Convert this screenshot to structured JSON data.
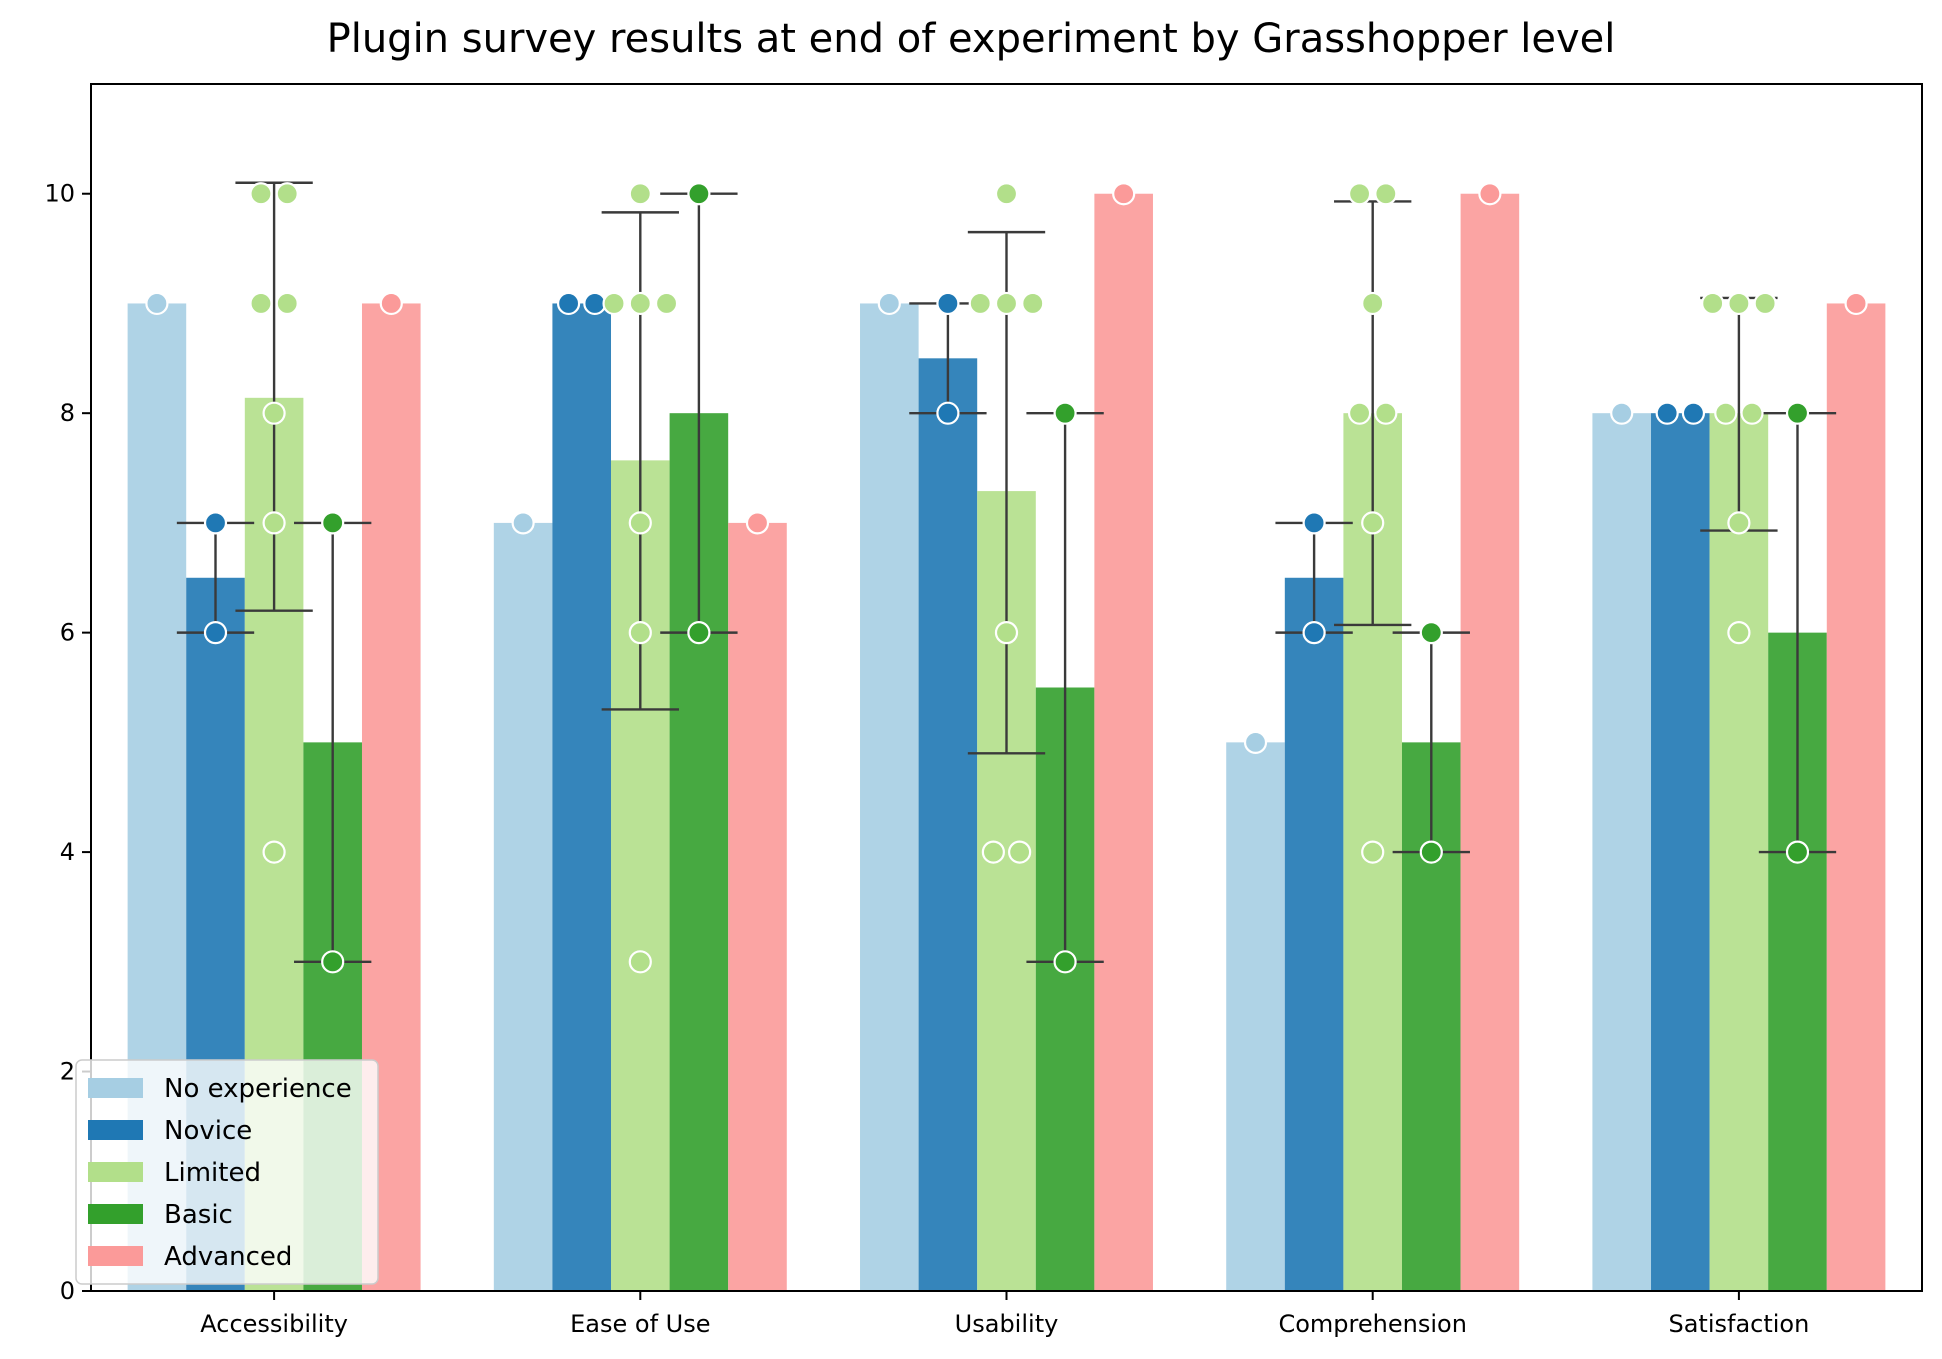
{
  "chart_data": {
    "type": "bar",
    "title": "Plugin survey results at end of experiment by Grasshopper level",
    "xlabel": "",
    "ylabel": "",
    "ylim": [
      0,
      11
    ],
    "yticks": [
      0,
      2,
      4,
      6,
      8,
      10
    ],
    "grid": false,
    "legend_position": "lower-left",
    "categories": [
      "Accessibility",
      "Ease of Use",
      "Usability",
      "Comprehension",
      "Satisfaction"
    ],
    "series": [
      {
        "name": "No experience",
        "color": "#a6cee3",
        "values": [
          9,
          7,
          9,
          5,
          8
        ],
        "error_low": [
          null,
          null,
          null,
          null,
          null
        ],
        "error_high": [
          null,
          null,
          null,
          null,
          null
        ],
        "points": [
          [
            9
          ],
          [
            7
          ],
          [
            9
          ],
          [
            5
          ],
          [
            8
          ]
        ]
      },
      {
        "name": "Novice",
        "color": "#1f78b4",
        "values": [
          6.5,
          9,
          8.5,
          6.5,
          8
        ],
        "error_low": [
          6,
          null,
          8,
          6,
          null
        ],
        "error_high": [
          7,
          null,
          9,
          7,
          null
        ],
        "points": [
          [
            7,
            6
          ],
          [
            9,
            9
          ],
          [
            9,
            8
          ],
          [
            7,
            6
          ],
          [
            8,
            8
          ]
        ]
      },
      {
        "name": "Limited",
        "color": "#b2df8a",
        "values": [
          8.14,
          7.57,
          7.29,
          8,
          8
        ],
        "error_low": [
          6.2,
          5.3,
          4.9,
          6.07,
          6.93
        ],
        "error_high": [
          10.1,
          9.83,
          9.65,
          9.93,
          9.05
        ],
        "points": [
          [
            10,
            10,
            9,
            9,
            8,
            7,
            4
          ],
          [
            10,
            9,
            9,
            9,
            7,
            6,
            3
          ],
          [
            10,
            9,
            9,
            9,
            6,
            4,
            4
          ],
          [
            10,
            10,
            9,
            8,
            8,
            7,
            4
          ],
          [
            9,
            9,
            9,
            8,
            8,
            7,
            6
          ]
        ]
      },
      {
        "name": "Basic",
        "color": "#33a02c",
        "values": [
          5,
          8,
          5.5,
          5,
          6
        ],
        "error_low": [
          3,
          6,
          3,
          4,
          4
        ],
        "error_high": [
          7,
          10,
          8,
          6,
          8
        ],
        "points": [
          [
            7,
            3
          ],
          [
            10,
            6
          ],
          [
            8,
            3
          ],
          [
            6,
            4
          ],
          [
            8,
            4
          ]
        ]
      },
      {
        "name": "Advanced",
        "color": "#fb9a99",
        "values": [
          9,
          7,
          10,
          10,
          9
        ],
        "error_low": [
          null,
          null,
          null,
          null,
          null
        ],
        "error_high": [
          null,
          null,
          null,
          null,
          null
        ],
        "points": [
          [
            9
          ],
          [
            7
          ],
          [
            10
          ],
          [
            10
          ],
          [
            9
          ]
        ]
      }
    ]
  }
}
